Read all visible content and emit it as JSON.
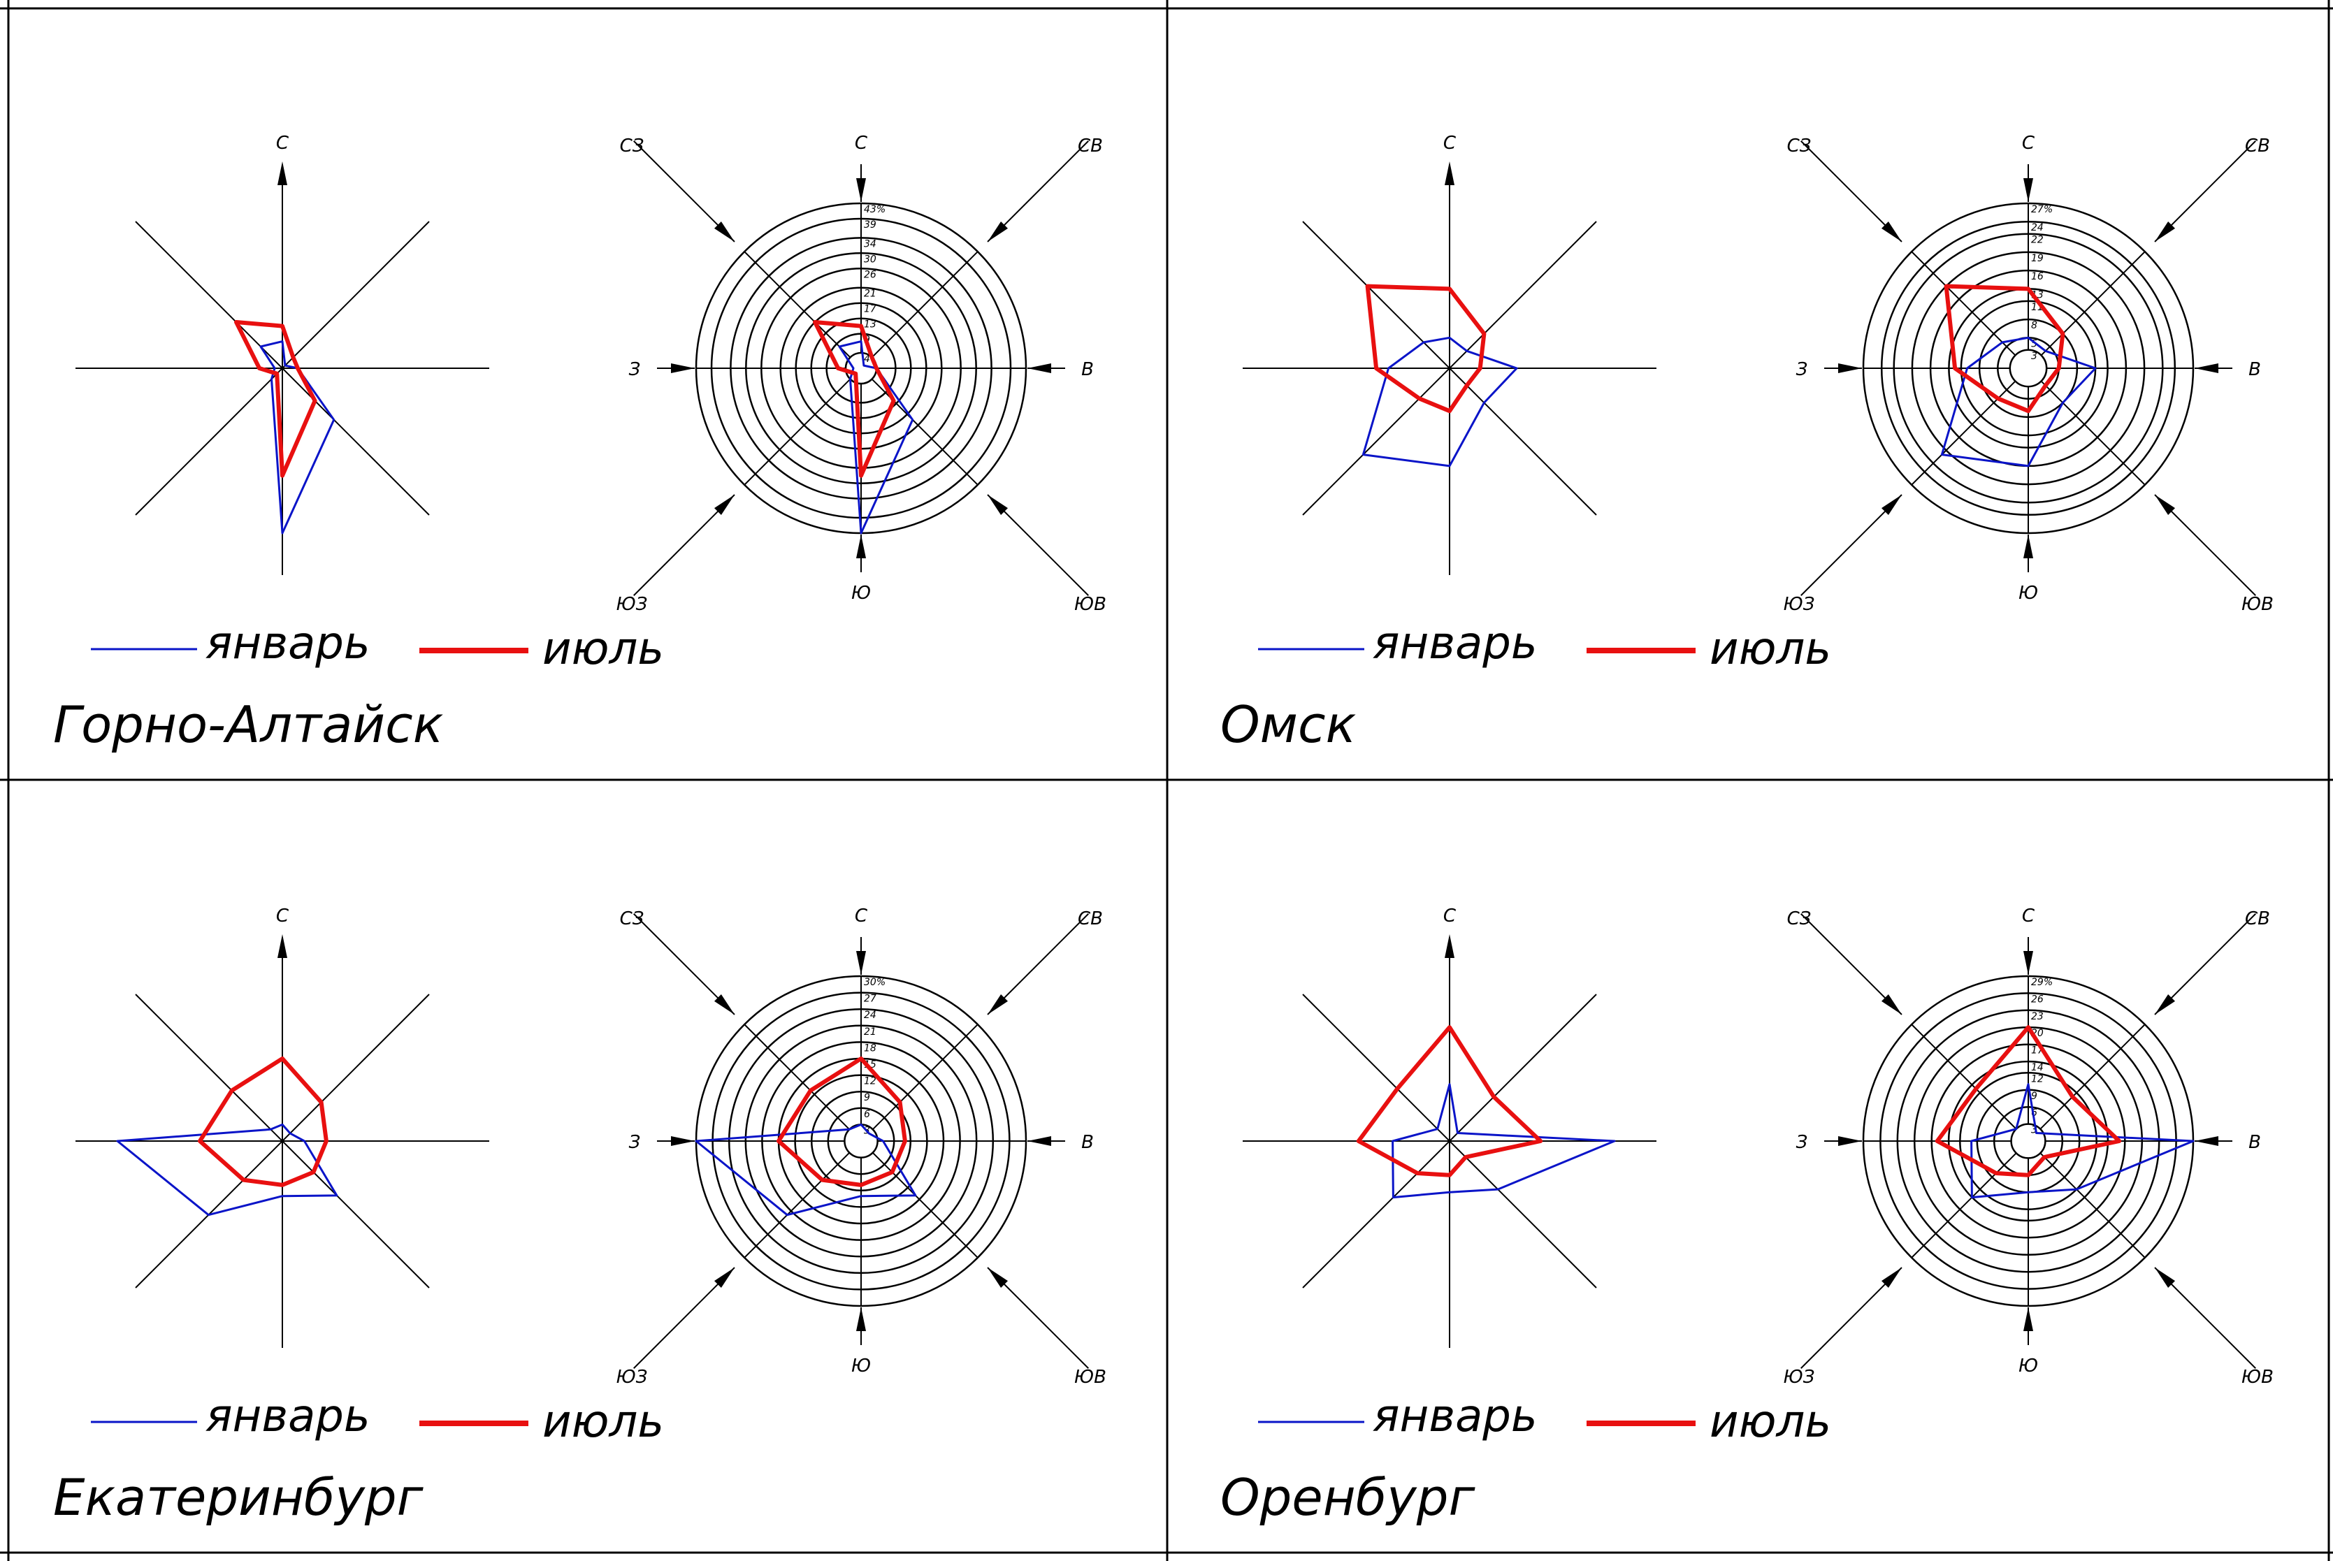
{
  "colors": {
    "january": "#0a14c8",
    "july": "#e81010",
    "axes": "#000000",
    "border": "#000000"
  },
  "legend": {
    "january": "январь",
    "july": "июль"
  },
  "directions": {
    "N": "С",
    "NE": "СВ",
    "E": "В",
    "SE": "ЮВ",
    "S": "Ю",
    "SW": "ЮЗ",
    "W": "З",
    "NW": "СЗ"
  },
  "chart_data": [
    {
      "type": "radar",
      "title": "Горно-Алтайск",
      "directions": [
        "С",
        "СВ",
        "В",
        "ЮВ",
        "Ю",
        "ЮЗ",
        "З",
        "СЗ"
      ],
      "max": 43,
      "rings": [
        4,
        9,
        13,
        17,
        21,
        26,
        30,
        34,
        39,
        43
      ],
      "ring_labels": [
        "4",
        "9",
        "13",
        "17",
        "21",
        "26",
        "30",
        "34",
        "39",
        "43%"
      ],
      "series": [
        {
          "name": "январь",
          "values": [
            7,
            1,
            4,
            19,
            43,
            4,
            2,
            8
          ]
        },
        {
          "name": "июль",
          "values": [
            11,
            4,
            4,
            12,
            28,
            2,
            6,
            17
          ]
        }
      ]
    },
    {
      "type": "radar",
      "title": "Омск",
      "directions": [
        "С",
        "СВ",
        "В",
        "ЮВ",
        "Ю",
        "ЮЗ",
        "З",
        "СЗ"
      ],
      "max": 27,
      "rings": [
        3,
        5,
        8,
        11,
        13,
        16,
        19,
        22,
        24,
        27
      ],
      "ring_labels": [
        "3",
        "5",
        "8",
        "11",
        "13",
        "16",
        "19",
        "22",
        "24",
        "27%"
      ],
      "series": [
        {
          "name": "январь",
          "values": [
            5,
            4,
            11,
            8,
            16,
            20,
            10,
            6
          ]
        },
        {
          "name": "июль",
          "values": [
            13,
            8,
            5,
            4,
            7,
            7,
            12,
            19
          ]
        }
      ]
    },
    {
      "type": "radar",
      "title": "Екатеринбург",
      "directions": [
        "С",
        "СВ",
        "В",
        "ЮВ",
        "Ю",
        "ЮЗ",
        "З",
        "СЗ"
      ],
      "max": 30,
      "rings": [
        3,
        6,
        9,
        12,
        15,
        18,
        21,
        24,
        27,
        30
      ],
      "ring_labels": [
        "3",
        "6",
        "9",
        "12",
        "15",
        "18",
        "21",
        "24",
        "27",
        "30%"
      ],
      "series": [
        {
          "name": "январь",
          "values": [
            3,
            2,
            4,
            14,
            10,
            19,
            30,
            3
          ]
        },
        {
          "name": "июль",
          "values": [
            15,
            10,
            8,
            8,
            8,
            10,
            15,
            13
          ]
        }
      ]
    },
    {
      "type": "radar",
      "title": "Оренбург",
      "directions": [
        "С",
        "СВ",
        "В",
        "ЮВ",
        "Ю",
        "ЮЗ",
        "З",
        "СЗ"
      ],
      "max": 29,
      "rings": [
        3,
        6,
        9,
        12,
        14,
        17,
        20,
        23,
        26,
        29
      ],
      "ring_labels": [
        "3",
        "6",
        "9",
        "12",
        "14",
        "17",
        "20",
        "23",
        "26",
        "29%"
      ],
      "series": [
        {
          "name": "январь",
          "values": [
            10,
            2,
            29,
            12,
            9,
            14,
            10,
            3
          ]
        },
        {
          "name": "июль",
          "values": [
            20,
            11,
            16,
            4,
            6,
            8,
            16,
            13
          ]
        }
      ]
    }
  ]
}
